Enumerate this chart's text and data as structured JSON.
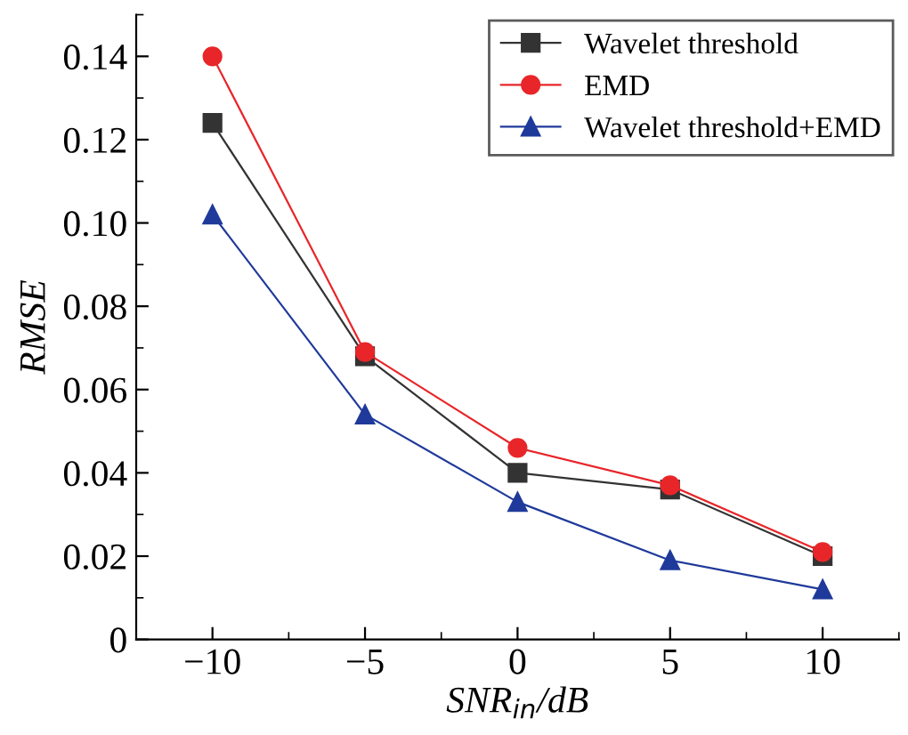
{
  "chart_data": {
    "type": "line",
    "xlabel": "SNR$_{in}$/dB",
    "ylabel": "RMSE",
    "x": [
      -10,
      -5,
      0,
      5,
      10
    ],
    "series": [
      {
        "name": "Wavelet threshold",
        "color": "#333333",
        "marker": "square",
        "values": [
          0.124,
          0.068,
          0.04,
          0.036,
          0.02
        ]
      },
      {
        "name": "EMD",
        "color": "#e8262a",
        "marker": "circle",
        "values": [
          0.14,
          0.069,
          0.046,
          0.037,
          0.021
        ]
      },
      {
        "name": "Wavelet threshold+EMD",
        "color": "#1f3a9a",
        "marker": "triangle",
        "values": [
          0.102,
          0.054,
          0.033,
          0.019,
          0.012
        ]
      }
    ],
    "xlim": [
      -12.5,
      12.5
    ],
    "xticks": [
      {
        "value": -10,
        "label": "−10"
      },
      {
        "value": -5,
        "label": "−5"
      },
      0,
      5,
      10
    ],
    "ylim": [
      0,
      0.15
    ],
    "yticks": [
      {
        "value": 0,
        "label": "0"
      },
      {
        "value": 0.02,
        "label": "0.02"
      },
      {
        "value": 0.04,
        "label": "0.04"
      },
      {
        "value": 0.06,
        "label": "0.06"
      },
      {
        "value": 0.08,
        "label": "0.08"
      },
      {
        "value": 0.1,
        "label": "0.10"
      },
      {
        "value": 0.12,
        "label": "0.12"
      },
      {
        "value": 0.14,
        "label": "0.14"
      }
    ],
    "legend": "top right",
    "grid": false,
    "line_style": "solid"
  }
}
